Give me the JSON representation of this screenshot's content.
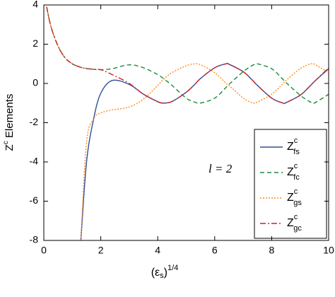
{
  "chart_data": {
    "type": "line",
    "x_label": [
      "(ε",
      "s",
      ")",
      "1/4"
    ],
    "y_label": [
      "Z",
      "c",
      " Elements"
    ],
    "annotation": "l = 2",
    "xlim": [
      0,
      10
    ],
    "xticks": [
      0,
      2,
      4,
      6,
      8,
      10
    ],
    "ylim": [
      -8,
      4
    ],
    "yticks": [
      -8,
      -6,
      -4,
      -2,
      0,
      2,
      4
    ],
    "x": [
      0.1,
      0.25,
      0.5,
      0.75,
      1,
      1.15,
      1.3,
      1.5,
      1.75,
      2,
      2.4,
      3,
      3.5,
      4,
      4.2,
      4.5,
      5,
      5.3,
      5.5,
      6,
      6.4,
      6.5,
      7,
      7.3,
      7.4,
      7.5,
      8,
      8.4,
      8.5,
      9,
      9.3,
      9.4,
      9.5,
      10
    ],
    "series": [
      {
        "name": {
          "base": "Z",
          "sup": "c",
          "sub": "fs"
        },
        "color": "#2e4f9e",
        "dash": "none",
        "values": [
          null,
          null,
          null,
          null,
          null,
          null,
          -8,
          -4,
          -1.8,
          -0.5,
          0.15,
          -0.05,
          -0.55,
          -0.93,
          -1,
          -0.92,
          -0.45,
          -0.05,
          0.25,
          0.8,
          1,
          0.98,
          0.6,
          0.2,
          0.05,
          -0.1,
          -0.75,
          -1,
          -0.98,
          -0.6,
          -0.2,
          -0.05,
          0.1,
          0.75
        ]
      },
      {
        "name": {
          "base": "Z",
          "sup": "c",
          "sub": "fc"
        },
        "color": "#1a8a3a",
        "dash": "6 4",
        "values": [
          3.9,
          2.9,
          1.9,
          1.3,
          1.0,
          0.9,
          0.82,
          0.76,
          0.72,
          0.7,
          0.75,
          0.95,
          0.8,
          0.45,
          0.25,
          -0.1,
          -0.75,
          -0.95,
          -1,
          -0.75,
          -0.2,
          -0.05,
          0.6,
          0.9,
          0.97,
          1,
          0.75,
          0.2,
          0.05,
          -0.6,
          -0.9,
          -0.97,
          -1,
          -0.55
        ]
      },
      {
        "name": {
          "base": "Z",
          "sup": "c",
          "sub": "gs"
        },
        "color": "#ff8c1a",
        "dash": "2 2",
        "values": [
          3.9,
          2.9,
          1.9,
          1.3,
          1.0,
          null,
          -8,
          -3,
          -1.8,
          -1.5,
          -1.35,
          -1.2,
          -0.8,
          -0.1,
          0.2,
          0.55,
          0.9,
          1,
          0.95,
          0.55,
          0,
          -0.1,
          -0.75,
          -0.98,
          -1,
          -0.95,
          -0.55,
          0,
          0.15,
          0.75,
          0.97,
          1,
          0.98,
          0.55
        ]
      },
      {
        "name": {
          "base": "Z",
          "sup": "c",
          "sub": "gc"
        },
        "color": "#cc2222",
        "dash": "8 3 2 3",
        "values": [
          3.9,
          2.9,
          1.9,
          1.3,
          1.0,
          0.9,
          0.82,
          0.76,
          0.72,
          0.7,
          0.45,
          0.0,
          -0.55,
          -0.93,
          -1,
          -0.92,
          -0.45,
          -0.05,
          0.25,
          0.8,
          1,
          0.98,
          0.6,
          0.2,
          0.05,
          -0.1,
          -0.75,
          -1,
          -0.98,
          -0.6,
          -0.2,
          -0.05,
          0.1,
          0.8
        ]
      }
    ]
  }
}
